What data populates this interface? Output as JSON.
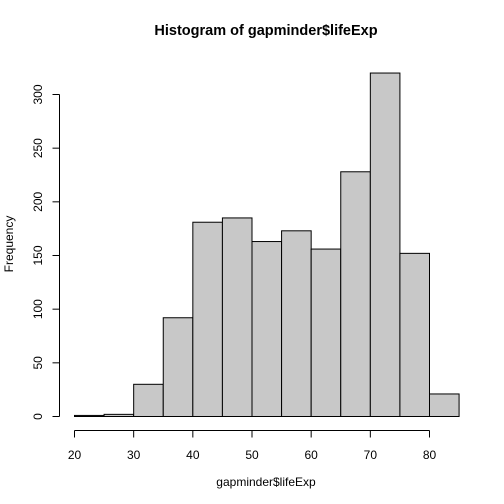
{
  "chart_data": {
    "type": "bar",
    "title": "Histogram of gapminder$lifeExp",
    "xlabel": "gapminder$lifeExp",
    "ylabel": "Frequency",
    "bin_edges": [
      20,
      25,
      30,
      35,
      40,
      45,
      50,
      55,
      60,
      65,
      70,
      75,
      80,
      85
    ],
    "values": [
      1,
      2,
      30,
      92,
      181,
      185,
      163,
      173,
      156,
      228,
      320,
      152,
      21
    ],
    "xlim": [
      20,
      85
    ],
    "ylim": [
      0,
      320
    ],
    "x_ticks": [
      20,
      30,
      40,
      50,
      60,
      70,
      80
    ],
    "y_ticks": [
      0,
      50,
      100,
      150,
      200,
      250,
      300
    ],
    "bar_color": "#c8c8c8",
    "edge_color": "#000000",
    "grid": false,
    "legend": "none"
  }
}
